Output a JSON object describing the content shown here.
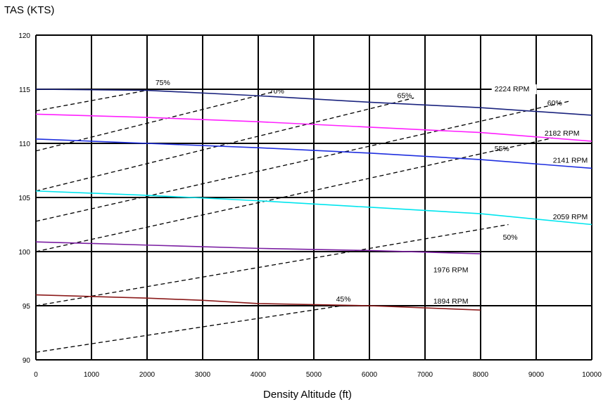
{
  "chart_data": {
    "type": "line",
    "xlabel": "Density Altitude (ft)",
    "ylabel": "TAS (KTS)",
    "xlim": [
      0,
      10000
    ],
    "ylim": [
      90,
      120
    ],
    "xticks": [
      0,
      1000,
      2000,
      3000,
      4000,
      5000,
      6000,
      7000,
      8000,
      9000,
      10000
    ],
    "yticks": [
      90,
      95,
      100,
      105,
      110,
      115,
      120
    ],
    "grid": true,
    "rpm_series": [
      {
        "name": "2224 RPM",
        "color": "#1a237e",
        "x": [
          0,
          2000,
          4000,
          6000,
          8000,
          10000
        ],
        "y": [
          115,
          114.9,
          114.4,
          113.8,
          113.3,
          112.6
        ]
      },
      {
        "name": "2182 RPM",
        "color": "#ff1fff",
        "x": [
          0,
          2000,
          4000,
          6000,
          8000,
          10000
        ],
        "y": [
          112.7,
          112.4,
          112.0,
          111.5,
          111.0,
          110.2
        ]
      },
      {
        "name": "2141 RPM",
        "color": "#1f2fdf",
        "x": [
          0,
          2000,
          4000,
          6000,
          8000,
          10000
        ],
        "y": [
          110.4,
          110.0,
          109.6,
          109.1,
          108.5,
          107.7
        ]
      },
      {
        "name": "2059 RPM",
        "color": "#00e5ee",
        "x": [
          0,
          2000,
          4000,
          6000,
          8000,
          10000
        ],
        "y": [
          105.6,
          105.2,
          104.7,
          104.1,
          103.5,
          102.5
        ]
      },
      {
        "name": "1976 RPM",
        "color": "#7b1fa2",
        "x": [
          0,
          2000,
          4000,
          6000,
          8000
        ],
        "y": [
          100.9,
          100.6,
          100.3,
          100.1,
          99.8
        ]
      },
      {
        "name": "1894 RPM",
        "color": "#8b1a1a",
        "x": [
          0,
          2000,
          3000,
          4000,
          6000,
          8000
        ],
        "y": [
          96.0,
          95.7,
          95.5,
          95.2,
          95.0,
          94.6
        ]
      }
    ],
    "power_series": [
      {
        "name": "75%",
        "x": [
          0,
          2000
        ],
        "y": [
          113,
          114.9
        ]
      },
      {
        "name": "70%",
        "x": [
          0,
          4300
        ],
        "y": [
          109.3,
          114.8
        ]
      },
      {
        "name": "65%",
        "x": [
          0,
          6800
        ],
        "y": [
          105.6,
          114.2
        ]
      },
      {
        "name": "60%",
        "x": [
          0,
          9600
        ],
        "y": [
          102.8,
          113.9
        ]
      },
      {
        "name": "55%",
        "x": [
          0,
          9300
        ],
        "y": [
          100.0,
          110.5
        ]
      },
      {
        "name": "50%",
        "x": [
          0,
          8500
        ],
        "y": [
          95.0,
          102.5
        ]
      },
      {
        "name": "45%",
        "x": [
          0,
          5500
        ],
        "y": [
          90.7,
          95.0
        ]
      }
    ],
    "labels": [
      {
        "text": "75%",
        "x": 2150,
        "y": 115.4
      },
      {
        "text": "70%",
        "x": 4200,
        "y": 114.6
      },
      {
        "text": "65%",
        "x": 6500,
        "y": 114.2
      },
      {
        "text": "60%",
        "x": 9200,
        "y": 113.5
      },
      {
        "text": "55%",
        "x": 8250,
        "y": 109.3
      },
      {
        "text": "50%",
        "x": 8400,
        "y": 101.1
      },
      {
        "text": "45%",
        "x": 5400,
        "y": 95.4
      },
      {
        "text": "2224 RPM",
        "x": 8250,
        "y": 114.8
      },
      {
        "text": "2182 RPM",
        "x": 9150,
        "y": 110.7
      },
      {
        "text": "2141 RPM",
        "x": 9300,
        "y": 108.2
      },
      {
        "text": "2059 RPM",
        "x": 9300,
        "y": 103.0
      },
      {
        "text": "1976 RPM",
        "x": 7150,
        "y": 98.1
      },
      {
        "text": "1894 RPM",
        "x": 7150,
        "y": 95.2
      }
    ]
  }
}
